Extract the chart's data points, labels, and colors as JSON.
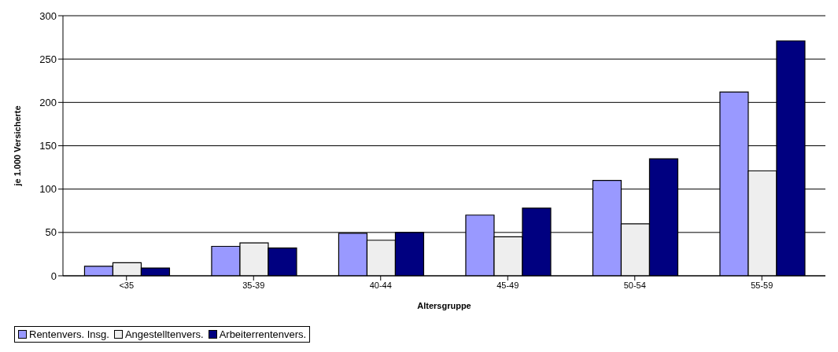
{
  "chart_data": {
    "type": "bar",
    "xlabel": "Altersgruppe",
    "ylabel": "je 1.000 Versicherte",
    "categories": [
      "<35",
      "35-39",
      "40-44",
      "45-49",
      "50-54",
      "55-59"
    ],
    "series": [
      {
        "name": "Rentenvers. Insg.",
        "color": "#9999ff",
        "values": [
          11,
          34,
          49,
          70,
          110,
          212
        ]
      },
      {
        "name": "Angestelltenvers.",
        "color": "#eeeeee",
        "values": [
          15,
          38,
          41,
          45,
          60,
          121
        ]
      },
      {
        "name": "Arbeiterrentenvers.",
        "color": "#000080",
        "values": [
          9,
          32,
          50,
          78,
          135,
          271
        ]
      }
    ],
    "ylim": [
      0,
      300
    ],
    "yticks": [
      0,
      50,
      100,
      150,
      200,
      250,
      300
    ],
    "grid": "y",
    "legend": "bottom"
  }
}
